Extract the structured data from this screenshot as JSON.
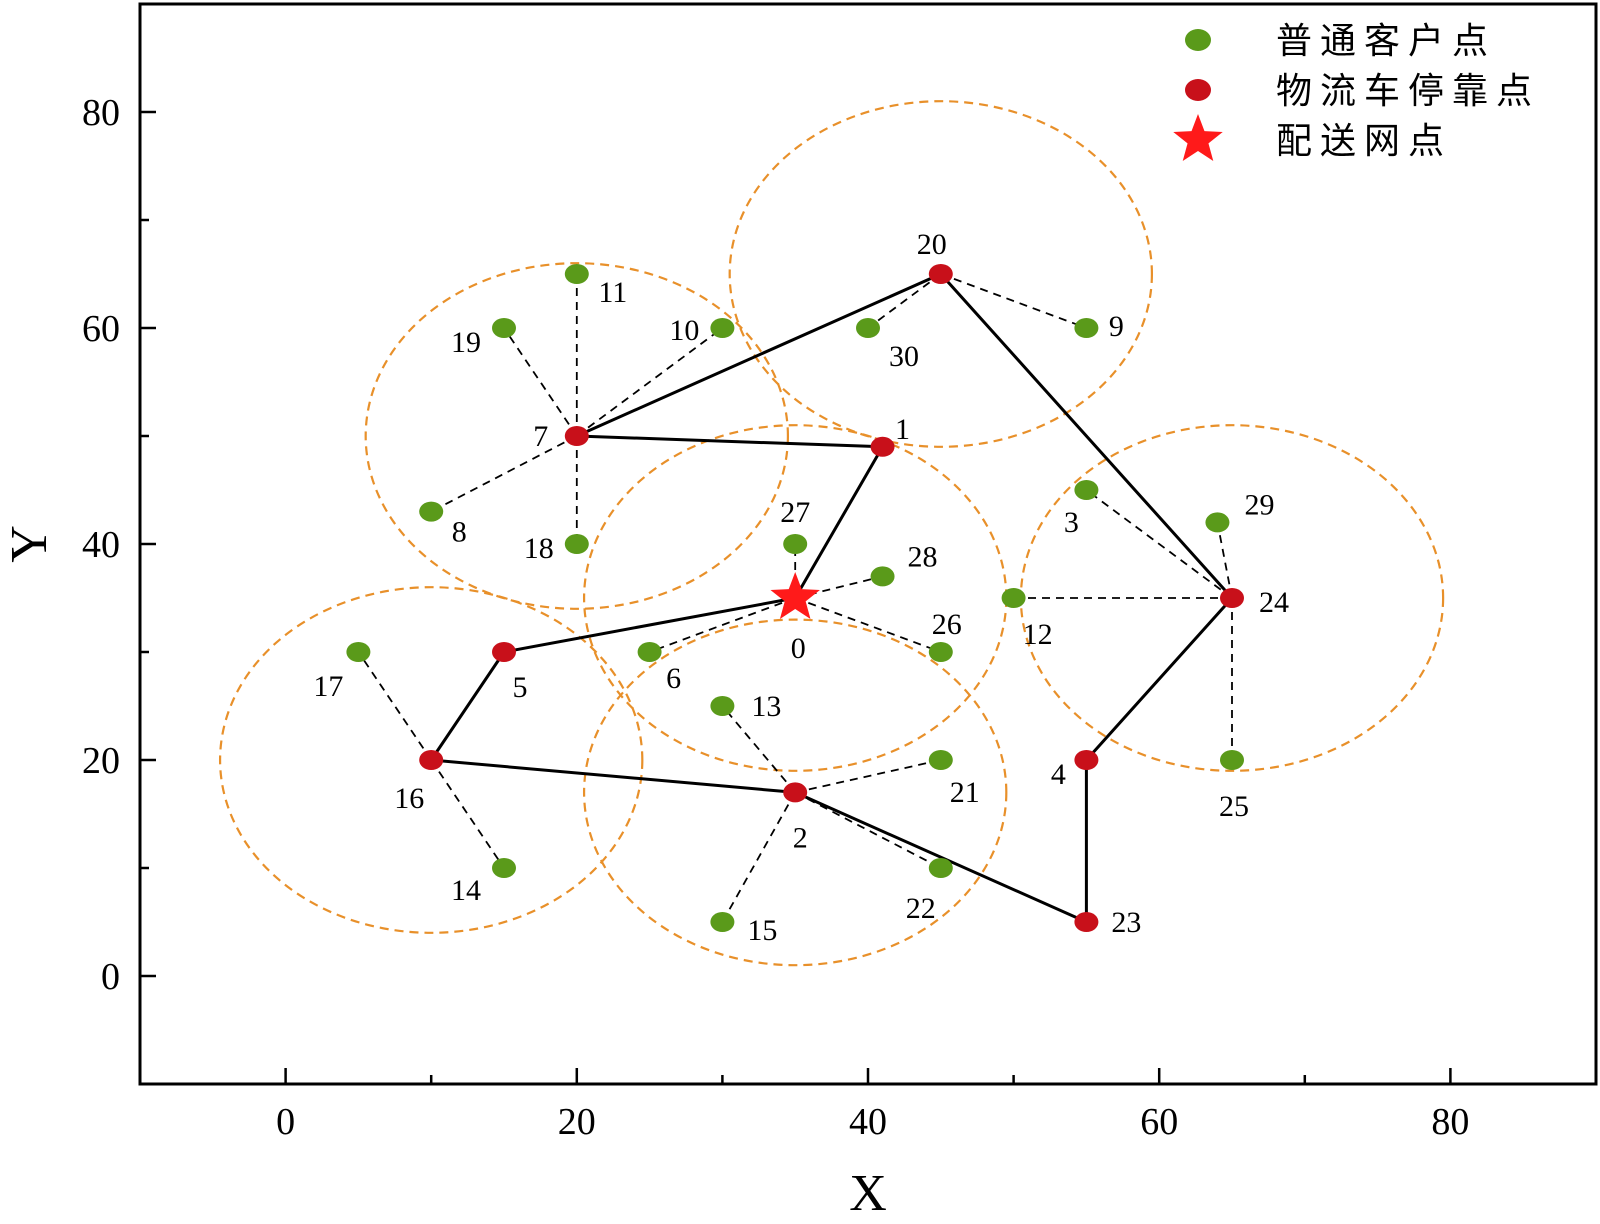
{
  "chart_data": {
    "type": "scatter",
    "title": "",
    "xlabel": "X",
    "ylabel": "Y",
    "xlim": [
      -10,
      90
    ],
    "ylim": [
      -10,
      90
    ],
    "xticks": [
      0,
      20,
      40,
      60,
      80
    ],
    "yticks": [
      0,
      20,
      40,
      60,
      80
    ],
    "xtick_labels": [
      "0",
      "20",
      "40",
      "60",
      "80"
    ],
    "ytick_labels": [
      "0",
      "20",
      "40",
      "60",
      "80"
    ],
    "legend_position": "top-right",
    "colors": {
      "customer": "#5a9a1a",
      "parking": "#c8101a",
      "depot": "#ff1a1a",
      "circle": "#e8902a",
      "route": "#000000",
      "assignment": "#000000"
    },
    "series": [
      {
        "name": "普通客户点",
        "marker": "green-circle",
        "points": [
          {
            "id": "3",
            "x": 55,
            "y": 45
          },
          {
            "id": "6",
            "x": 25,
            "y": 30
          },
          {
            "id": "8",
            "x": 10,
            "y": 43
          },
          {
            "id": "9",
            "x": 55,
            "y": 60
          },
          {
            "id": "10",
            "x": 30,
            "y": 60
          },
          {
            "id": "11",
            "x": 20,
            "y": 65
          },
          {
            "id": "12",
            "x": 50,
            "y": 35
          },
          {
            "id": "13",
            "x": 30,
            "y": 25
          },
          {
            "id": "14",
            "x": 15,
            "y": 10
          },
          {
            "id": "15",
            "x": 30,
            "y": 5
          },
          {
            "id": "17",
            "x": 5,
            "y": 30
          },
          {
            "id": "18",
            "x": 20,
            "y": 40
          },
          {
            "id": "19",
            "x": 15,
            "y": 60
          },
          {
            "id": "21",
            "x": 45,
            "y": 20
          },
          {
            "id": "22",
            "x": 45,
            "y": 10
          },
          {
            "id": "25",
            "x": 65,
            "y": 20
          },
          {
            "id": "26",
            "x": 45,
            "y": 30
          },
          {
            "id": "27",
            "x": 35,
            "y": 40
          },
          {
            "id": "28",
            "x": 41,
            "y": 37
          },
          {
            "id": "29",
            "x": 64,
            "y": 42
          },
          {
            "id": "30",
            "x": 40,
            "y": 60
          }
        ]
      },
      {
        "name": "物流车停靠点",
        "marker": "red-circle",
        "points": [
          {
            "id": "1",
            "x": 41,
            "y": 49
          },
          {
            "id": "2",
            "x": 35,
            "y": 17
          },
          {
            "id": "4",
            "x": 55,
            "y": 20
          },
          {
            "id": "5",
            "x": 15,
            "y": 30
          },
          {
            "id": "7",
            "x": 20,
            "y": 50
          },
          {
            "id": "16",
            "x": 10,
            "y": 20
          },
          {
            "id": "20",
            "x": 45,
            "y": 65
          },
          {
            "id": "23",
            "x": 55,
            "y": 5
          },
          {
            "id": "24",
            "x": 65,
            "y": 35
          }
        ]
      },
      {
        "name": "配送网点",
        "marker": "red-star",
        "points": [
          {
            "id": "0",
            "x": 35,
            "y": 35
          }
        ]
      }
    ],
    "route": [
      "0",
      "1",
      "7",
      "20",
      "24",
      "4",
      "23",
      "2",
      "16",
      "5",
      "0"
    ],
    "assignments": [
      [
        "7",
        "11"
      ],
      [
        "7",
        "19"
      ],
      [
        "7",
        "10"
      ],
      [
        "7",
        "8"
      ],
      [
        "7",
        "18"
      ],
      [
        "20",
        "30"
      ],
      [
        "20",
        "9"
      ],
      [
        "24",
        "3"
      ],
      [
        "24",
        "29"
      ],
      [
        "24",
        "12"
      ],
      [
        "24",
        "25"
      ],
      [
        "0",
        "27"
      ],
      [
        "0",
        "28"
      ],
      [
        "0",
        "26"
      ],
      [
        "0",
        "6"
      ],
      [
        "2",
        "13"
      ],
      [
        "2",
        "21"
      ],
      [
        "2",
        "22"
      ],
      [
        "2",
        "15"
      ],
      [
        "16",
        "17"
      ],
      [
        "16",
        "14"
      ]
    ],
    "circles": [
      {
        "center": "7",
        "radius_x": 14.5,
        "radius_y": 16
      },
      {
        "center": "20",
        "radius_x": 14.5,
        "radius_y": 16
      },
      {
        "center": "0",
        "radius_x": 14.5,
        "radius_y": 16
      },
      {
        "center": "24",
        "radius_x": 14.5,
        "radius_y": 16
      },
      {
        "center": "16",
        "radius_x": 14.5,
        "radius_y": 16
      },
      {
        "center": "2",
        "radius_x": 14.5,
        "radius_y": 16
      }
    ]
  }
}
